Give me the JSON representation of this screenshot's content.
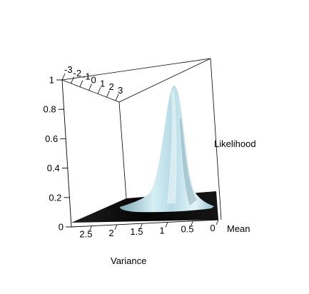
{
  "chart_data": {
    "type": "surface",
    "title": "",
    "axes": {
      "variance": {
        "label": "Variance",
        "range": [
          0,
          2.9
        ],
        "ticks": [
          0,
          0.5,
          1,
          1.5,
          2,
          2.5
        ],
        "tick_labels": [
          "0",
          "0.5",
          "1",
          "1.5",
          "2",
          "2.5"
        ]
      },
      "mean": {
        "label": "Mean",
        "range": [
          -3,
          3.4
        ],
        "ticks": [
          -3,
          -2,
          -1,
          0,
          1,
          2,
          3
        ],
        "tick_labels": [
          "-3",
          "-2",
          "-1",
          "0",
          "1",
          "2",
          "3"
        ]
      },
      "likelihood": {
        "label": "Likelihood",
        "range": [
          0,
          1
        ],
        "ticks": [
          0,
          0.2,
          0.4,
          0.6,
          0.8,
          1
        ],
        "tick_labels": [
          "0",
          "0.2",
          "0.4",
          "0.6",
          "0.8",
          "1"
        ]
      }
    },
    "peak": {
      "mean": 0.5,
      "variance": 0.35,
      "likelihood": 0.96
    },
    "surface_color": "#bfe0ea",
    "floor_color": "#0a0a0a",
    "background": "#ffffff",
    "grid": false
  }
}
